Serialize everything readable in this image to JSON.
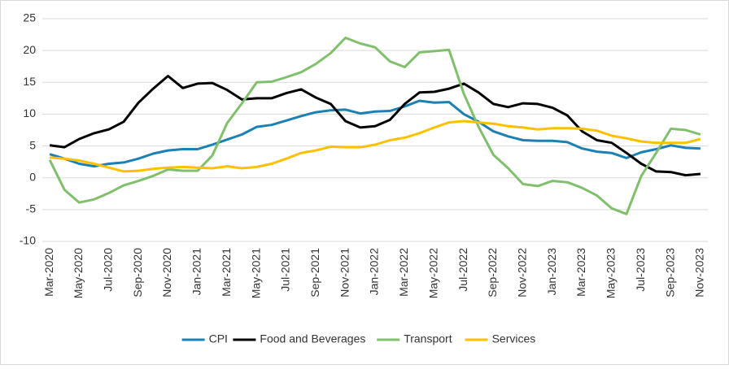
{
  "chart_data": {
    "type": "line",
    "categories": [
      "Mar-2020",
      null,
      "May-2020",
      null,
      "Jul-2020",
      null,
      "Sep-2020",
      null,
      "Nov-2020",
      null,
      "Jan-2021",
      null,
      "Mar-2021",
      null,
      "May-2021",
      null,
      "Jul-2021",
      null,
      "Sep-2021",
      null,
      "Nov-2021",
      null,
      "Jan-2022",
      null,
      "Mar-2022",
      null,
      "May-2022",
      null,
      "Jul-2022",
      null,
      "Sep-2022",
      null,
      "Nov-2022",
      null,
      "Jan-2023",
      null,
      "Mar-2023",
      null,
      "May-2023",
      null,
      "Jul-2023",
      null,
      "Sep-2023",
      null,
      "Nov-2023"
    ],
    "series": [
      {
        "name": "CPI",
        "color": "#1b80b3",
        "values": [
          3.7,
          3.0,
          2.2,
          1.8,
          2.2,
          2.4,
          3.0,
          3.8,
          4.3,
          4.5,
          4.5,
          5.2,
          6.0,
          6.8,
          8.0,
          8.3,
          9.0,
          9.7,
          10.3,
          10.6,
          10.7,
          10.1,
          10.4,
          10.5,
          11.2,
          12.1,
          11.8,
          11.9,
          10.0,
          8.8,
          7.3,
          6.5,
          5.9,
          5.8,
          5.8,
          5.6,
          4.6,
          4.1,
          3.9,
          3.1,
          4.0,
          4.5,
          5.1,
          4.7,
          4.6
        ]
      },
      {
        "name": "Food and Beverages",
        "color": "#000000",
        "values": [
          5.1,
          4.8,
          6.1,
          7.0,
          7.6,
          8.8,
          11.8,
          14.0,
          16.0,
          14.1,
          14.8,
          14.9,
          13.8,
          12.3,
          12.5,
          12.5,
          13.3,
          13.9,
          12.6,
          11.6,
          8.9,
          7.9,
          8.1,
          9.1,
          11.6,
          13.4,
          13.5,
          14.0,
          14.8,
          13.4,
          11.6,
          11.1,
          11.7,
          11.6,
          11.0,
          9.8,
          7.3,
          5.9,
          5.5,
          3.9,
          2.2,
          1.0,
          0.9,
          0.4,
          0.6
        ]
      },
      {
        "name": "Transport",
        "color": "#80c06c",
        "values": [
          2.8,
          -1.9,
          -3.9,
          -3.4,
          -2.4,
          -1.2,
          -0.5,
          0.3,
          1.3,
          1.1,
          1.1,
          3.5,
          8.6,
          11.7,
          15.0,
          15.1,
          15.8,
          16.6,
          17.9,
          19.6,
          22.0,
          21.1,
          20.5,
          18.3,
          17.4,
          19.7,
          19.9,
          20.1,
          13.2,
          8.0,
          3.6,
          1.5,
          -1.0,
          -1.3,
          -0.5,
          -0.7,
          -1.6,
          -2.8,
          -4.8,
          -5.7,
          0.3,
          3.9,
          7.7,
          7.5,
          6.8
        ]
      },
      {
        "name": "Services",
        "color": "#ffc000",
        "values": [
          3.2,
          3.0,
          2.7,
          2.2,
          1.6,
          1.0,
          1.1,
          1.4,
          1.6,
          1.7,
          1.6,
          1.5,
          1.8,
          1.5,
          1.7,
          2.2,
          3.0,
          3.9,
          4.3,
          4.9,
          4.8,
          4.8,
          5.2,
          5.9,
          6.3,
          7.0,
          7.9,
          8.7,
          8.9,
          8.7,
          8.5,
          8.1,
          7.9,
          7.6,
          7.8,
          7.8,
          7.7,
          7.4,
          6.6,
          6.2,
          5.7,
          5.5,
          5.5,
          5.5,
          6.1
        ]
      }
    ],
    "ylim": [
      -10,
      25
    ],
    "yticks": [
      -10,
      -5,
      0,
      5,
      10,
      15,
      20,
      25
    ],
    "grid": true,
    "legend": "bottom"
  }
}
